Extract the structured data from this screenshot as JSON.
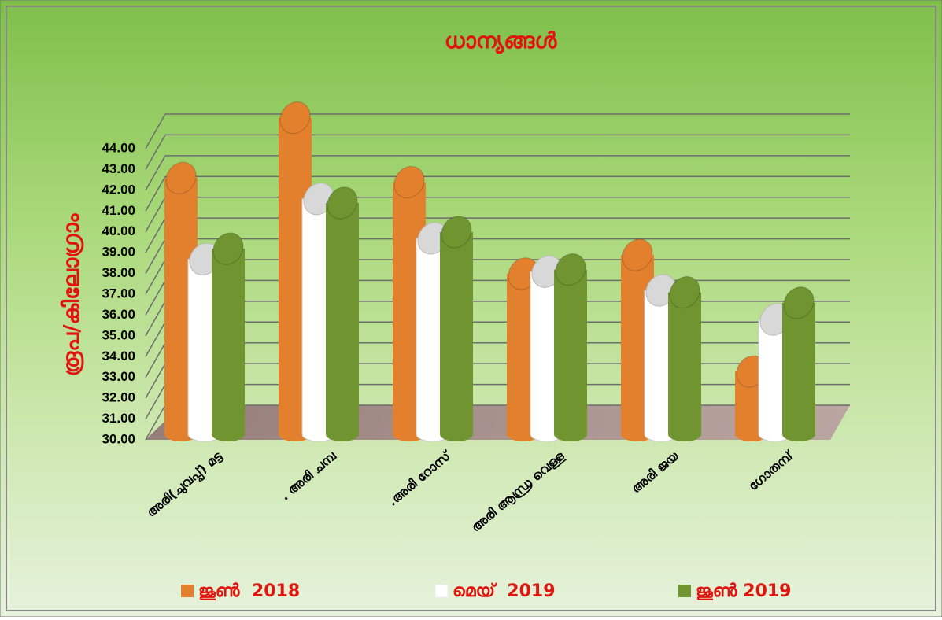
{
  "chart_data": {
    "type": "bar3d",
    "title": "ധാന്യങ്ങൾ",
    "y_label": "രൂപ/കിലോഗ്രാം",
    "categories": [
      "അരി(ചുവപ്പ്) മട്ട",
      ". അരി ചമ്പ",
      ".അരി റോസ്",
      "അരി ആന്ധ്ര വെള്ള",
      "അരി ജയ",
      "ഗോതമ്പ്"
    ],
    "series": [
      {
        "name": "ജൂൺ  2018",
        "color": "#e2802e",
        "values": [
          41.0,
          43.9,
          40.8,
          36.4,
          37.3,
          31.7
        ]
      },
      {
        "name": "മെയ്  2019",
        "color": "#ffffff",
        "values": [
          37.1,
          40.0,
          38.1,
          36.5,
          35.6,
          34.2
        ]
      },
      {
        "name": "ജൂൺ 2019",
        "color": "#6f9430",
        "values": [
          37.6,
          39.8,
          38.4,
          36.6,
          35.5,
          35.0
        ]
      }
    ],
    "ylim": [
      30,
      44
    ],
    "yticks": [
      {
        "value": 30,
        "label": "30.00"
      },
      {
        "value": 31,
        "label": "31.00"
      },
      {
        "value": 32,
        "label": "32.00"
      },
      {
        "value": 33,
        "label": "33.00"
      },
      {
        "value": 34,
        "label": "34.00"
      },
      {
        "value": 35,
        "label": "35.00"
      },
      {
        "value": 36,
        "label": "36.00"
      },
      {
        "value": 37,
        "label": "37.00"
      },
      {
        "value": 38,
        "label": "38.00"
      },
      {
        "value": 39,
        "label": "39.00"
      },
      {
        "value": 40,
        "label": "40.00"
      },
      {
        "value": 41,
        "label": "41.00"
      },
      {
        "value": 42,
        "label": "42.00"
      },
      {
        "value": 43,
        "label": "43.00"
      },
      {
        "value": 44,
        "label": "44.00"
      }
    ],
    "grid": true
  }
}
